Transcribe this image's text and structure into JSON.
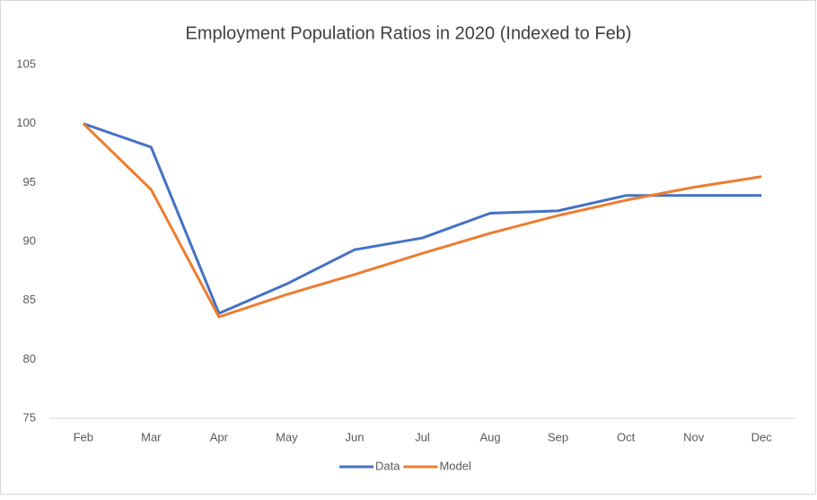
{
  "chart_data": {
    "type": "line",
    "title": "Employment Population Ratios in 2020 (Indexed to Feb)",
    "categories": [
      "Feb",
      "Mar",
      "Apr",
      "May",
      "Jun",
      "Jul",
      "Aug",
      "Sep",
      "Oct",
      "Nov",
      "Dec"
    ],
    "series": [
      {
        "name": "Data",
        "color": "#4472c4",
        "values": [
          100,
          98.0,
          83.9,
          86.4,
          89.3,
          90.3,
          92.4,
          92.6,
          93.9,
          93.9,
          93.9
        ]
      },
      {
        "name": "Model",
        "color": "#ed7d31",
        "values": [
          100,
          94.4,
          83.6,
          85.5,
          87.2,
          89.0,
          90.7,
          92.2,
          93.5,
          94.6,
          95.5
        ]
      }
    ],
    "ylim": [
      75,
      105
    ],
    "yticks": [
      75,
      80,
      85,
      90,
      95,
      100,
      105
    ],
    "grid": false,
    "legend": "bottom"
  }
}
